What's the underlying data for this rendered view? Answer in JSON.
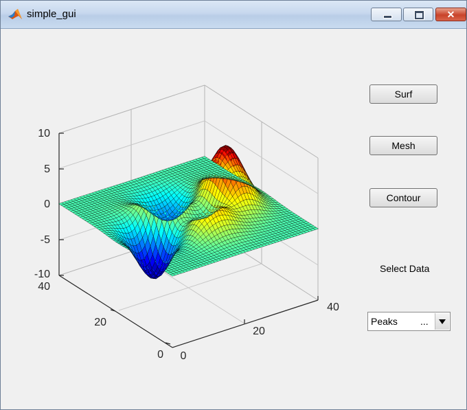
{
  "window": {
    "title": "simple_gui",
    "close_label": "✕"
  },
  "controls": {
    "surf_label": "Surf",
    "mesh_label": "Mesh",
    "contour_label": "Contour",
    "select_label": "Select Data",
    "popup_value": "Peaks",
    "popup_ellipsis": "..."
  },
  "axes": {
    "z_ticks": [
      "10",
      "5",
      "0",
      "-5",
      "-10"
    ],
    "y_ticks": [
      "40",
      "20",
      "0"
    ],
    "x_ticks": [
      "0",
      "20",
      "40"
    ]
  },
  "colors": {
    "colormap": "jet",
    "plot_background": "#f0f0f0"
  }
}
